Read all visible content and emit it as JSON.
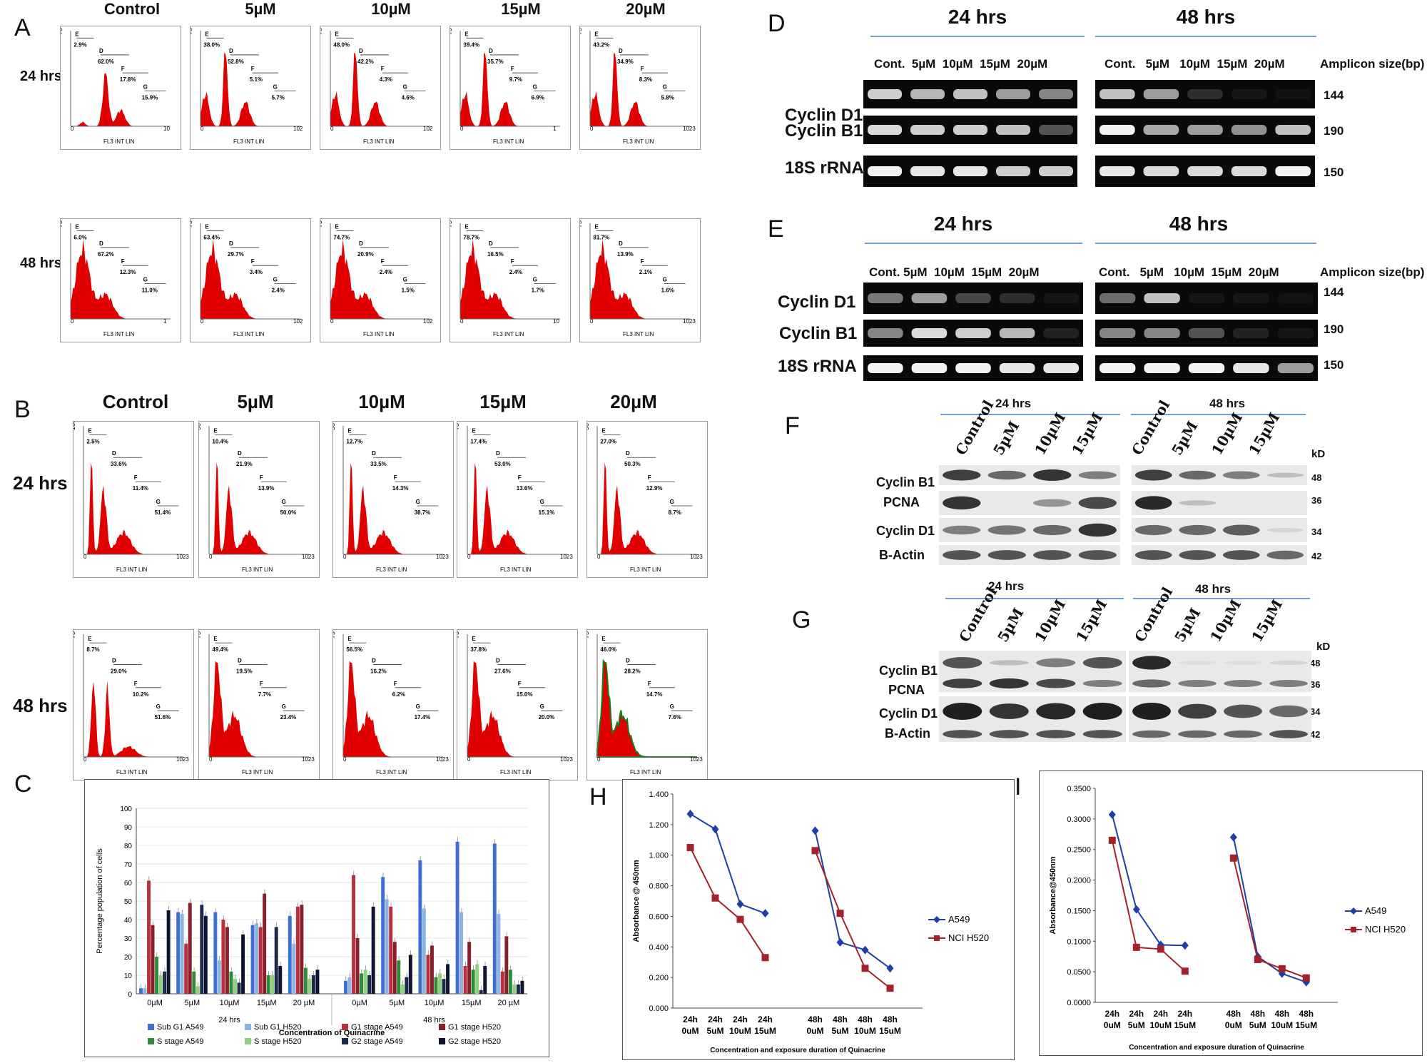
{
  "panels": {
    "A": "A",
    "B": "B",
    "C": "C",
    "D": "D",
    "E": "E",
    "F": "F",
    "G": "G",
    "H": "H",
    "I": "I"
  },
  "conc_headers": [
    "Control",
    "5µM",
    "10µM",
    "15µM",
    "20µM"
  ],
  "time_rows": [
    "24 hrs",
    "48 hrs"
  ],
  "flow_axis_label": "FL3 INT LIN",
  "flow_ymax": "75",
  "panelA": {
    "r24": [
      {
        "E": "2.9%",
        "D": "62.0%",
        "F": "17.8%",
        "G": "15.9%",
        "xmax": "10"
      },
      {
        "E": "38.0%",
        "D": "52.8%",
        "F": "5.1%",
        "G": "5.7%",
        "xmax": "102"
      },
      {
        "E": "48.0%",
        "D": "42.2%",
        "F": "4.3%",
        "G": "4.6%",
        "xmax": "102"
      },
      {
        "E": "39.4%",
        "D": "35.7%",
        "F": "9.7%",
        "G": "6.9%",
        "xmax": "1"
      },
      {
        "E": "43.2%",
        "D": "34.9%",
        "F": "8.3%",
        "G": "5.8%",
        "xmax": "1023"
      }
    ],
    "r48": [
      {
        "E": "6.0%",
        "D": "67.2%",
        "F": "12.3%",
        "G": "11.0%",
        "xmax": "1"
      },
      {
        "E": "63.4%",
        "D": "29.7%",
        "F": "3.4%",
        "G": "2.4%",
        "xmax": "102"
      },
      {
        "E": "74.7%",
        "D": "20.9%",
        "F": "2.4%",
        "G": "1.5%",
        "xmax": "102"
      },
      {
        "E": "78.7%",
        "D": "16.5%",
        "F": "2.4%",
        "G": "1.7%",
        "xmax": "10"
      },
      {
        "E": "81.7%",
        "D": "13.9%",
        "F": "2.1%",
        "G": "1.6%",
        "xmax": "1023"
      }
    ]
  },
  "panelB": {
    "ymax": [
      "100",
      "50",
      "50",
      "75",
      "50"
    ],
    "r24": [
      {
        "E": "2.5%",
        "D": "33.6%",
        "F": "11.4%",
        "G": "51.4%"
      },
      {
        "E": "10.4%",
        "D": "21.9%",
        "F": "13.9%",
        "G": "50.0%"
      },
      {
        "E": "12.7%",
        "D": "33.5%",
        "F": "14.3%",
        "G": "38.7%"
      },
      {
        "E": "17.4%",
        "D": "53.0%",
        "F": "13.6%",
        "G": "15.1%"
      },
      {
        "E": "27.0%",
        "D": "50.3%",
        "F": "12.9%",
        "G": "8.7%"
      }
    ],
    "r48": [
      {
        "E": "8.7%",
        "D": "29.0%",
        "F": "10.2%",
        "G": "51.6%"
      },
      {
        "E": "49.4%",
        "D": "19.5%",
        "F": "7.7%",
        "G": "23.4%"
      },
      {
        "E": "56.5%",
        "D": "16.2%",
        "F": "6.2%",
        "G": "17.4%"
      },
      {
        "E": "37.8%",
        "D": "27.6%",
        "F": "15.0%",
        "G": "20.0%"
      },
      {
        "E": "46.0%",
        "D": "28.2%",
        "F": "14.7%",
        "G": "7.6%"
      }
    ],
    "xmax": "1023"
  },
  "gelD": {
    "time_headers": [
      "24 hrs",
      "48 hrs"
    ],
    "lanes_24": "Cont.  5µM  10µM  15µM  20µM",
    "lanes_48": "Cont.   5µM   10µM  15µM  20µM",
    "amplicon": "Amplicon size(bp)",
    "rows": [
      "Cyclin D1",
      "Cyclin B1",
      "18S rRNA"
    ],
    "sizes": [
      "144",
      "190",
      "150"
    ]
  },
  "gelE": {
    "time_headers": [
      "24 hrs",
      "48 hrs"
    ],
    "lanes_24": "Cont. 5µM  10µM  15µM  20µM",
    "lanes_48": "Cont.   5µM   10µM  15µM  20µM",
    "amplicon": "Amplicon size(bp)",
    "rows": [
      "Cyclin D1",
      "Cyclin B1",
      "18S rRNA"
    ],
    "sizes": [
      "144",
      "190",
      "150"
    ]
  },
  "wbF": {
    "time_headers": [
      "24 hrs",
      "48 hrs"
    ],
    "lanes": [
      "Control",
      "5µM",
      "10µM",
      "15µM"
    ],
    "kd": "kD",
    "rows": [
      "Cyclin B1",
      "PCNA",
      "Cyclin D1",
      "B-Actin"
    ],
    "sizes": [
      "48",
      "36",
      "34",
      "42"
    ]
  },
  "wbG": {
    "time_headers": [
      "24 hrs",
      "48 hrs"
    ],
    "lanes": [
      "Control",
      "5µM",
      "10µM",
      "15µM"
    ],
    "kd": "kD",
    "rows": [
      "Cyclin B1",
      "PCNA",
      "Cyclin D1",
      "B-Actin"
    ],
    "sizes": [
      "48",
      "36",
      "34",
      "42"
    ]
  },
  "chart_data": [
    {
      "panel": "C",
      "type": "bar",
      "title": "",
      "xlabel": "Concentration of Quinacrine",
      "ylabel": "Percentage population of cells",
      "ylim": [
        0,
        100
      ],
      "yticks": [
        "0",
        "10",
        "20",
        "30",
        "40",
        "50",
        "60",
        "70",
        "80",
        "90",
        "100"
      ],
      "groups": [
        "24 hrs",
        "48 hrs"
      ],
      "categories": [
        "0µM",
        "5µM",
        "10µM",
        "15µM",
        "20 µM",
        "0µM",
        "5µM",
        "10µM",
        "15µM",
        "20 µM"
      ],
      "legend": "bottom",
      "series": [
        {
          "name": "Sub G1 A549",
          "color": "#3f6fd1",
          "values": [
            3,
            44,
            44,
            37,
            42,
            7,
            63,
            72,
            82,
            81
          ]
        },
        {
          "name": "Sub G1 H520",
          "color": "#8eb4e3",
          "values": [
            3,
            43,
            18,
            38,
            27,
            9,
            51,
            46,
            44,
            43
          ]
        },
        {
          "name": "G1 stage A549",
          "color": "#b8303a",
          "values": [
            61,
            27,
            40,
            36,
            47,
            64,
            47,
            21,
            15,
            12
          ]
        },
        {
          "name": "G1 stage  H520",
          "color": "#8a1f2c",
          "values": [
            37,
            49,
            36,
            54,
            48,
            30,
            28,
            26,
            28,
            31
          ]
        },
        {
          "name": "S stage A549",
          "color": "#2e8b3a",
          "values": [
            20,
            12,
            12,
            10,
            14,
            11,
            18,
            9,
            13,
            13
          ]
        },
        {
          "name": "S stage H520",
          "color": "#8fd17d",
          "values": [
            10,
            4,
            8,
            10,
            8,
            13,
            5,
            11,
            16,
            5
          ]
        },
        {
          "name": "G2 stage A549",
          "color": "#1b2a4a",
          "values": [
            12,
            48,
            6,
            36,
            10,
            10,
            9,
            8,
            2,
            5
          ]
        },
        {
          "name": "G2 stage H520",
          "color": "#0f1530",
          "values": [
            45,
            42,
            32,
            15,
            13,
            47,
            21,
            16,
            15,
            7
          ]
        }
      ]
    },
    {
      "panel": "H",
      "type": "line",
      "title": "",
      "xlabel": "Concentration and exposure duration of Quinacrine",
      "ylabel": "Absorbance @ 450nm",
      "ylim": [
        0,
        1.4
      ],
      "yticks": [
        "0.000",
        "0.200",
        "0.400",
        "0.600",
        "0.800",
        "1.000",
        "1.200",
        "1.400"
      ],
      "categories_top": [
        "24h",
        "24h",
        "24h",
        "24h",
        "48h",
        "48h",
        "48h",
        "48h"
      ],
      "categories_bottom": [
        "0uM",
        "5uM",
        "10uM",
        "15uM",
        "0uM",
        "5uM",
        "10uM",
        "15uM"
      ],
      "series": [
        {
          "name": "A549",
          "color": "#1f3fa8",
          "seg1": [
            1.27,
            1.17,
            0.68,
            0.62
          ],
          "seg2": [
            1.16,
            0.43,
            0.38,
            0.26
          ]
        },
        {
          "name": "NCI H520",
          "color": "#a3222a",
          "seg1": [
            1.05,
            0.72,
            0.58,
            0.33
          ],
          "seg2": [
            1.03,
            0.62,
            0.26,
            0.13
          ]
        }
      ]
    },
    {
      "panel": "I",
      "type": "line",
      "title": "",
      "xlabel": "Concentration and exposure duration of Quinacrine",
      "ylabel": "Absorbance@450nm",
      "ylim": [
        0,
        0.35
      ],
      "yticks": [
        "0.0000",
        "0.0500",
        "0.1000",
        "0.1500",
        "0.2000",
        "0.2500",
        "0.3000",
        "0.3500"
      ],
      "categories_top": [
        "24h",
        "24h",
        "24h",
        "24h",
        "48h",
        "48h",
        "48h",
        "48h"
      ],
      "categories_bottom": [
        "0uM",
        "5uM",
        "10uM",
        "15uM",
        "0uM",
        "5uM",
        "10uM",
        "15uM"
      ],
      "series": [
        {
          "name": "A549",
          "color": "#1f3fa8",
          "seg1": [
            0.307,
            0.152,
            0.094,
            0.093
          ],
          "seg2": [
            0.27,
            0.075,
            0.047,
            0.033
          ]
        },
        {
          "name": "NCI H520",
          "color": "#a3222a",
          "seg1": [
            0.265,
            0.09,
            0.087,
            0.051
          ],
          "seg2": [
            0.236,
            0.07,
            0.055,
            0.04
          ]
        }
      ]
    }
  ]
}
